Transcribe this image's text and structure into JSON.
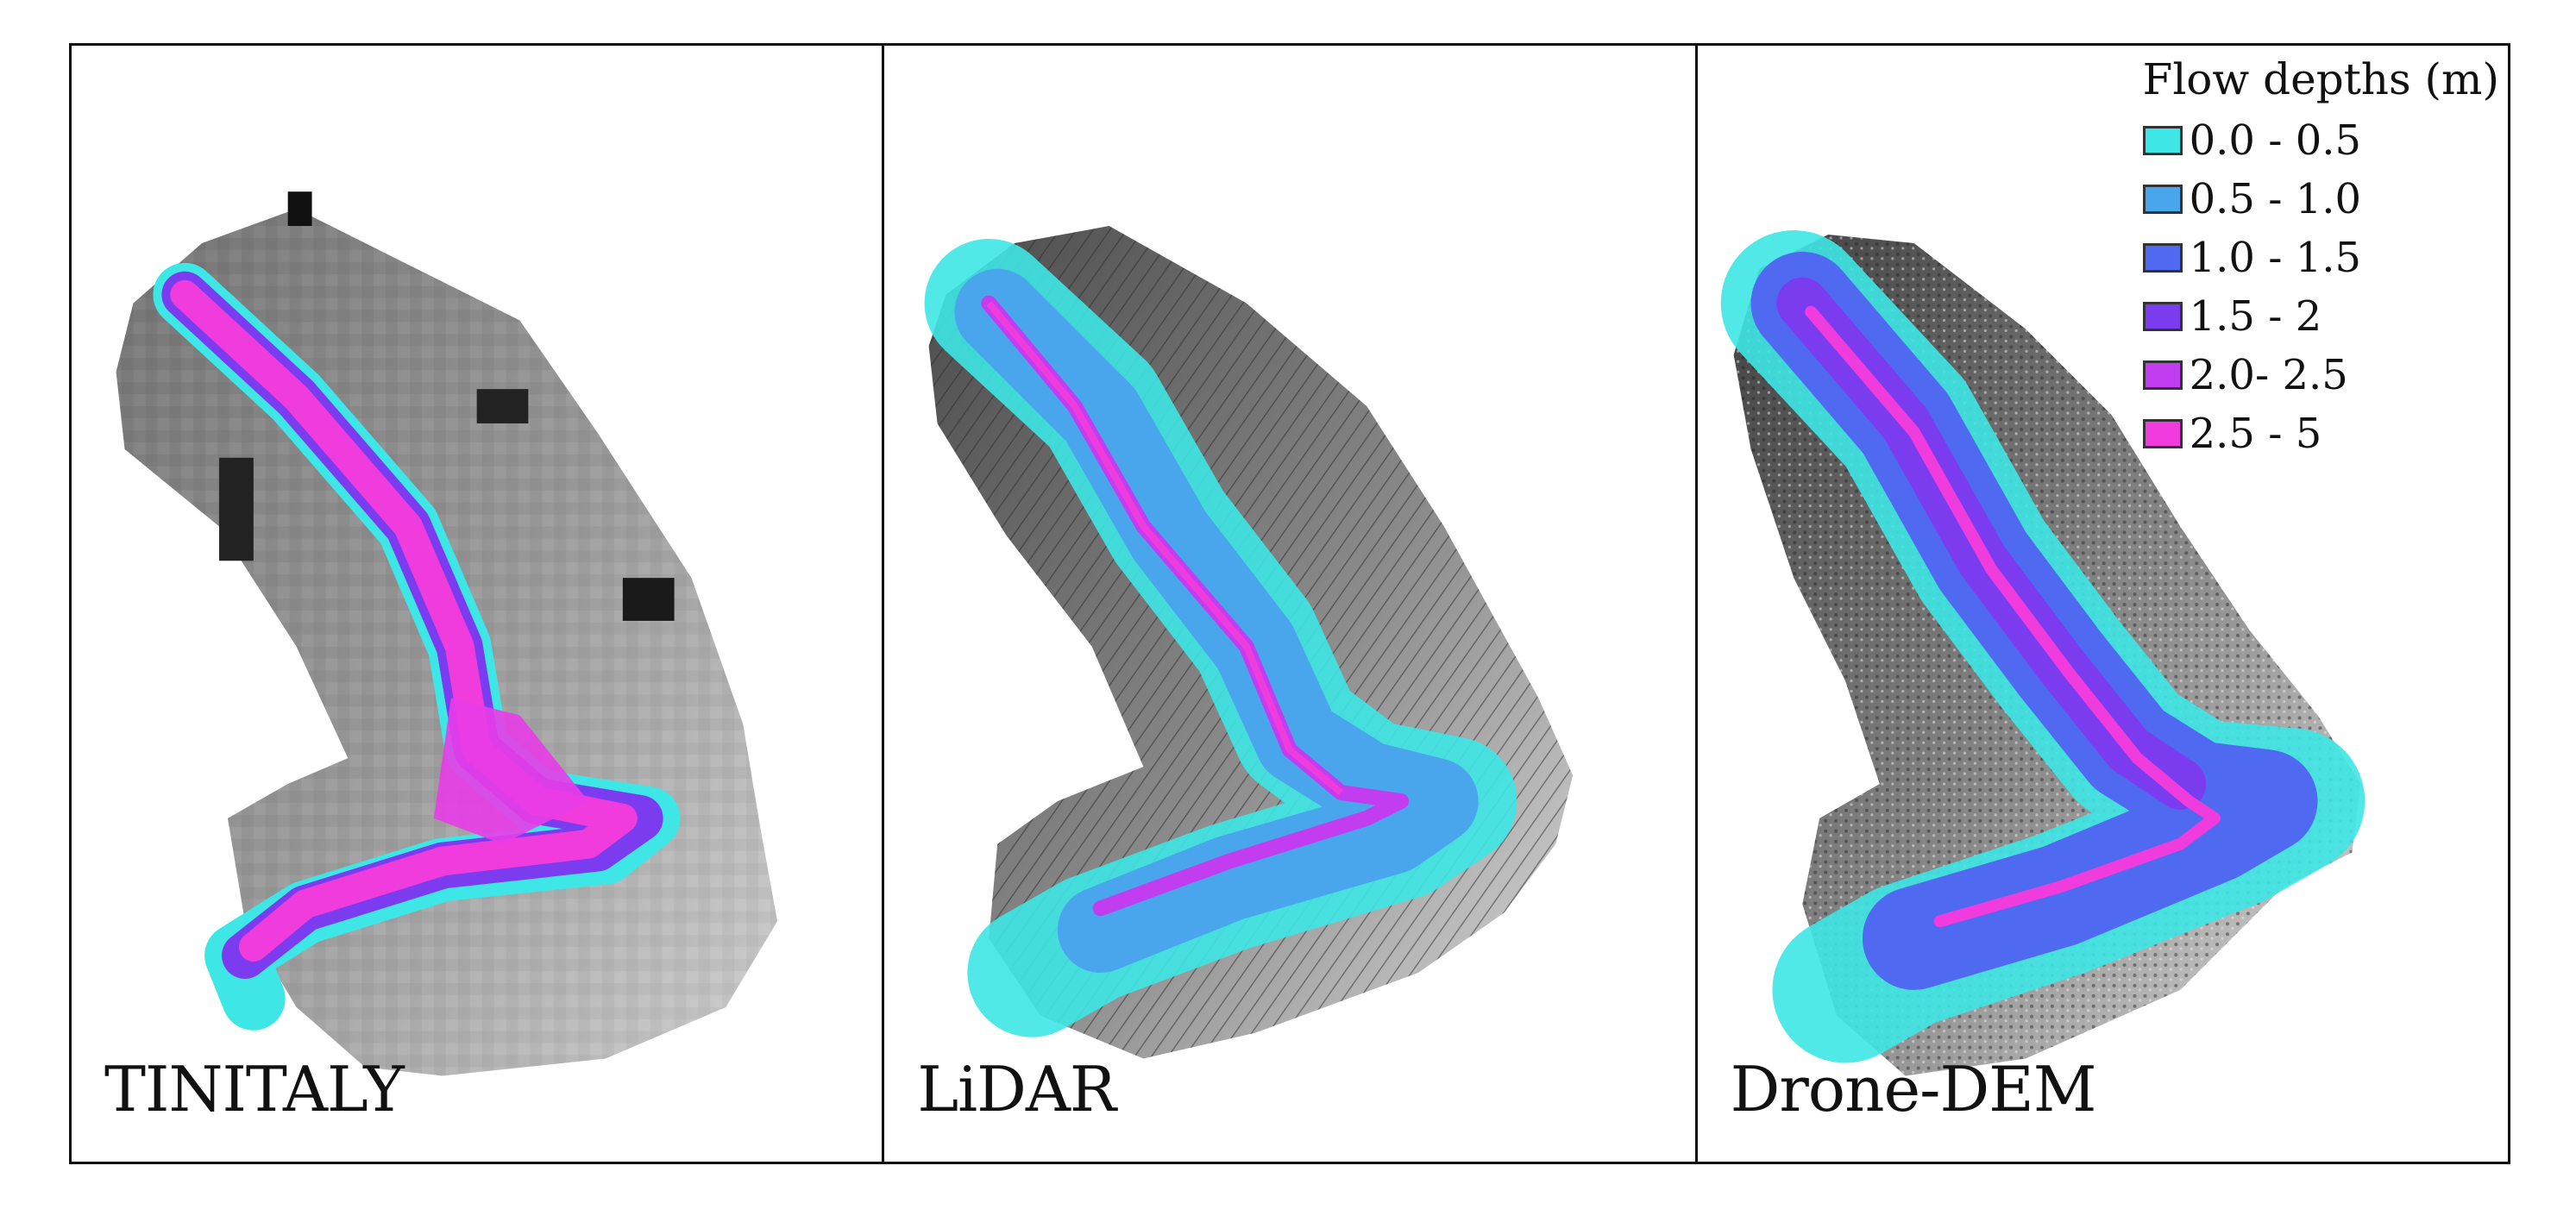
{
  "panels": [
    {
      "label": "TINITALY"
    },
    {
      "label": "LiDAR"
    },
    {
      "label": "Drone-DEM"
    }
  ],
  "legend": {
    "title": "Flow depths (m)",
    "items": [
      {
        "label": "0.0 - 0.5",
        "color": "#3ee6e6"
      },
      {
        "label": "0.5 - 1.0",
        "color": "#4aa6ec"
      },
      {
        "label": "1.0 - 1.5",
        "color": "#4f6af0"
      },
      {
        "label": "1.5 - 2",
        "color": "#7b3cf0"
      },
      {
        "label": "2.0- 2.5",
        "color": "#c23cf0"
      },
      {
        "label": "2.5 - 5",
        "color": "#f03cdc"
      }
    ]
  }
}
